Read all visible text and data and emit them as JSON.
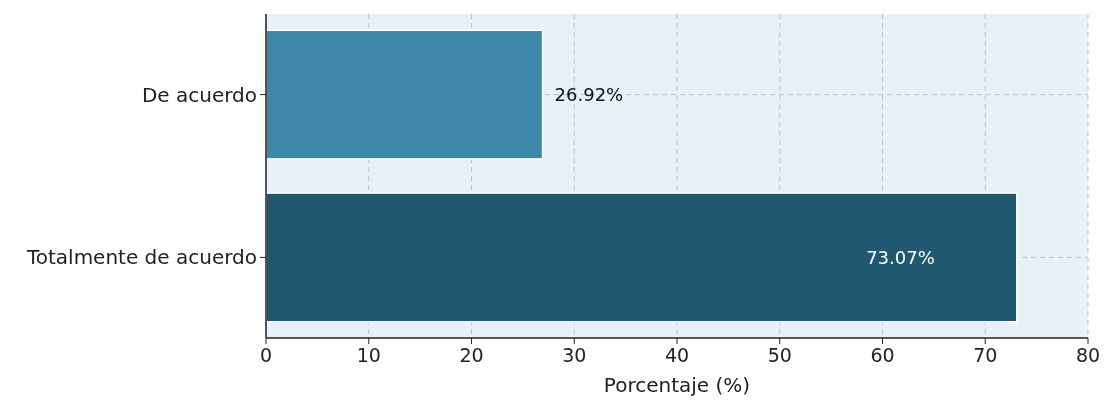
{
  "chart_data": {
    "type": "bar",
    "orientation": "horizontal",
    "categories": [
      "De acuerdo",
      "Totalmente de acuerdo"
    ],
    "values": [
      26.92,
      73.07
    ],
    "colors": [
      "#3f88a8",
      "#1f5870"
    ],
    "value_labels": [
      "26.92%",
      "73.07%"
    ],
    "xlabel": "Porcentaje (%)",
    "xlim": [
      0,
      80
    ],
    "xticks": [
      0,
      10,
      20,
      30,
      40,
      50,
      60,
      70,
      80
    ],
    "grid": true
  }
}
